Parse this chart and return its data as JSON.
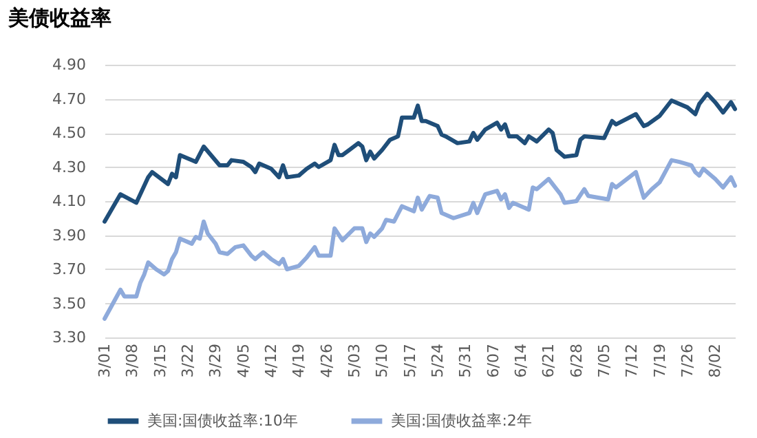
{
  "chart_data": {
    "type": "line",
    "title": "美债收益率",
    "xlim": [
      "--03-01",
      "--08-07"
    ],
    "xticks": [
      {
        "value": "--03-01",
        "label": "3/01"
      },
      {
        "value": "--03-08",
        "label": "3/08"
      },
      {
        "value": "--03-15",
        "label": "3/15"
      },
      {
        "value": "--03-22",
        "label": "3/22"
      },
      {
        "value": "--03-29",
        "label": "3/29"
      },
      {
        "value": "--04-05",
        "label": "4/05"
      },
      {
        "value": "--04-12",
        "label": "4/12"
      },
      {
        "value": "--04-19",
        "label": "4/19"
      },
      {
        "value": "--04-26",
        "label": "4/26"
      },
      {
        "value": "--05-03",
        "label": "5/03"
      },
      {
        "value": "--05-10",
        "label": "5/10"
      },
      {
        "value": "--05-17",
        "label": "5/17"
      },
      {
        "value": "--05-24",
        "label": "5/24"
      },
      {
        "value": "--05-31",
        "label": "5/31"
      },
      {
        "value": "--06-07",
        "label": "6/07"
      },
      {
        "value": "--06-14",
        "label": "6/14"
      },
      {
        "value": "--06-21",
        "label": "6/21"
      },
      {
        "value": "--06-28",
        "label": "6/28"
      },
      {
        "value": "--07-05",
        "label": "7/05"
      },
      {
        "value": "--07-12",
        "label": "7/12"
      },
      {
        "value": "--07-19",
        "label": "7/19"
      },
      {
        "value": "--07-26",
        "label": "7/26"
      },
      {
        "value": "--08-02",
        "label": "8/02"
      }
    ],
    "ylim": [
      3.3,
      4.9
    ],
    "yticks": [
      {
        "value": 3.3,
        "label": "3.30"
      },
      {
        "value": 3.5,
        "label": "3.50"
      },
      {
        "value": 3.7,
        "label": "3.70"
      },
      {
        "value": 3.9,
        "label": "3.90"
      },
      {
        "value": 4.1,
        "label": "4.10"
      },
      {
        "value": 4.3,
        "label": "4.30"
      },
      {
        "value": 4.5,
        "label": "4.50"
      },
      {
        "value": 4.7,
        "label": "4.70"
      },
      {
        "value": 4.9,
        "label": "4.90"
      }
    ],
    "grid": "y",
    "legend": "bottom",
    "marker": "none",
    "line_style": "solid",
    "series": [
      {
        "name": "美国:国债收益率:10年",
        "color": "#1f4e79",
        "x": [
          "--03-01",
          "--03-05",
          "--03-09",
          "--03-12",
          "--03-13",
          "--03-17",
          "--03-18",
          "--03-19",
          "--03-20",
          "--03-23",
          "--03-24",
          "--03-26",
          "--03-30",
          "--04-01",
          "--04-02",
          "--04-05",
          "--04-07",
          "--04-08",
          "--04-09",
          "--04-12",
          "--04-14",
          "--04-15",
          "--04-16",
          "--04-19",
          "--04-21",
          "--04-23",
          "--04-24",
          "--04-27",
          "--04-28",
          "--04-29",
          "--04-30",
          "--05-04",
          "--05-05",
          "--05-06",
          "--05-07",
          "--05-08",
          "--05-10",
          "--05-12",
          "--05-14",
          "--05-15",
          "--05-18",
          "--05-19",
          "--05-20",
          "--05-21",
          "--05-24",
          "--05-25",
          "--05-26",
          "--05-29",
          "--06-01",
          "--06-02",
          "--06-03",
          "--06-05",
          "--06-08",
          "--06-09",
          "--06-10",
          "--06-11",
          "--06-13",
          "--06-15",
          "--06-16",
          "--06-18",
          "--06-21",
          "--06-22",
          "--06-23",
          "--06-25",
          "--06-28",
          "--06-29",
          "--06-30",
          "--07-05",
          "--07-07",
          "--07-08",
          "--07-13",
          "--07-15",
          "--07-16",
          "--07-19",
          "--07-22",
          "--07-26",
          "--07-28",
          "--07-29",
          "--07-31",
          "--08-02",
          "--08-04",
          "--08-06",
          "--08-07"
        ],
        "values": [
          3.98,
          4.14,
          4.09,
          4.24,
          4.27,
          4.2,
          4.26,
          4.24,
          4.37,
          4.34,
          4.33,
          4.42,
          4.31,
          4.31,
          4.34,
          4.33,
          4.3,
          4.27,
          4.32,
          4.29,
          4.24,
          4.31,
          4.24,
          4.25,
          4.29,
          4.32,
          4.3,
          4.34,
          4.43,
          4.37,
          4.37,
          4.44,
          4.42,
          4.34,
          4.39,
          4.35,
          4.4,
          4.46,
          4.48,
          4.59,
          4.59,
          4.66,
          4.57,
          4.57,
          4.54,
          4.49,
          4.48,
          4.44,
          4.45,
          4.5,
          4.46,
          4.52,
          4.56,
          4.52,
          4.55,
          4.48,
          4.48,
          4.44,
          4.48,
          4.45,
          4.52,
          4.5,
          4.4,
          4.36,
          4.37,
          4.46,
          4.48,
          4.47,
          4.57,
          4.55,
          4.61,
          4.54,
          4.55,
          4.6,
          4.69,
          4.65,
          4.61,
          4.67,
          4.73,
          4.68,
          4.62,
          4.68,
          4.64
        ]
      },
      {
        "name": "美国:国债收益率:2年",
        "color": "#8eaadb",
        "x": [
          "--03-01",
          "--03-05",
          "--03-06",
          "--03-09",
          "--03-10",
          "--03-11",
          "--03-12",
          "--03-14",
          "--03-16",
          "--03-17",
          "--03-18",
          "--03-19",
          "--03-20",
          "--03-23",
          "--03-24",
          "--03-25",
          "--03-26",
          "--03-27",
          "--03-29",
          "--03-30",
          "--04-01",
          "--04-03",
          "--04-05",
          "--04-07",
          "--04-08",
          "--04-10",
          "--04-12",
          "--04-14",
          "--04-15",
          "--04-16",
          "--04-19",
          "--04-21",
          "--04-23",
          "--04-24",
          "--04-27",
          "--04-28",
          "--04-30",
          "--05-03",
          "--05-05",
          "--05-06",
          "--05-07",
          "--05-08",
          "--05-10",
          "--05-11",
          "--05-13",
          "--05-15",
          "--05-18",
          "--05-19",
          "--05-20",
          "--05-22",
          "--05-24",
          "--05-25",
          "--05-28",
          "--06-01",
          "--06-02",
          "--06-03",
          "--06-05",
          "--06-08",
          "--06-09",
          "--06-10",
          "--06-11",
          "--06-12",
          "--06-16",
          "--06-17",
          "--06-18",
          "--06-21",
          "--06-24",
          "--06-25",
          "--06-28",
          "--06-30",
          "--07-01",
          "--07-06",
          "--07-07",
          "--07-08",
          "--07-13",
          "--07-15",
          "--07-17",
          "--07-19",
          "--07-22",
          "--07-24",
          "--07-27",
          "--07-28",
          "--07-29",
          "--07-30",
          "--08-02",
          "--08-04",
          "--08-06",
          "--08-07"
        ],
        "values": [
          3.41,
          3.58,
          3.54,
          3.54,
          3.62,
          3.67,
          3.74,
          3.7,
          3.67,
          3.69,
          3.76,
          3.8,
          3.88,
          3.85,
          3.89,
          3.88,
          3.98,
          3.91,
          3.85,
          3.8,
          3.79,
          3.83,
          3.84,
          3.78,
          3.76,
          3.8,
          3.76,
          3.73,
          3.76,
          3.7,
          3.72,
          3.77,
          3.83,
          3.78,
          3.78,
          3.94,
          3.87,
          3.94,
          3.94,
          3.86,
          3.91,
          3.89,
          3.94,
          3.99,
          3.98,
          4.07,
          4.04,
          4.12,
          4.05,
          4.13,
          4.12,
          4.03,
          4.0,
          4.03,
          4.09,
          4.03,
          4.14,
          4.16,
          4.11,
          4.14,
          4.06,
          4.09,
          4.05,
          4.18,
          4.17,
          4.23,
          4.14,
          4.09,
          4.1,
          4.17,
          4.13,
          4.11,
          4.2,
          4.18,
          4.27,
          4.12,
          4.17,
          4.21,
          4.34,
          4.33,
          4.31,
          4.27,
          4.25,
          4.29,
          4.23,
          4.18,
          4.24,
          4.19
        ]
      }
    ]
  }
}
